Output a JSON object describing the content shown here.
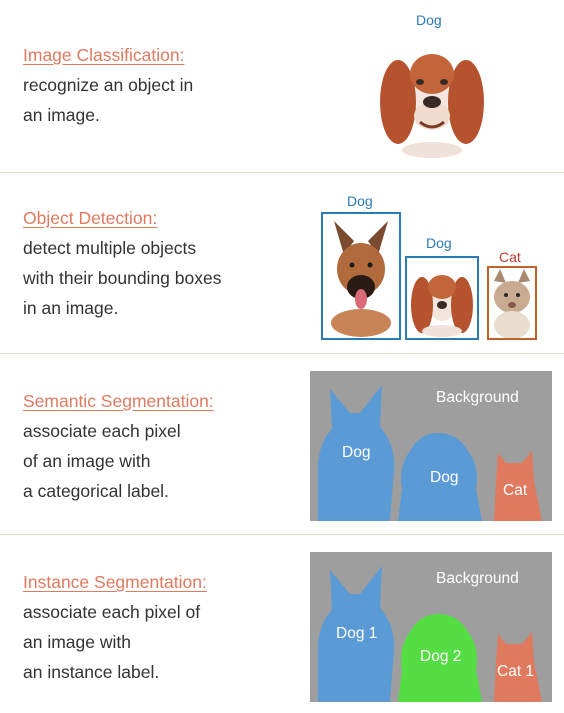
{
  "sections": [
    {
      "heading": "Image Classification:",
      "lines": [
        "recognize an object in",
        "an image."
      ],
      "labels": [
        "Dog"
      ]
    },
    {
      "heading": "Object Detection:",
      "lines": [
        "detect multiple objects",
        "with their bounding boxes",
        "in an image."
      ],
      "labels": [
        "Dog",
        "Dog",
        "Cat"
      ]
    },
    {
      "heading": "Semantic Segmentation:",
      "lines": [
        "associate each pixel",
        "of an image with",
        "a categorical label."
      ],
      "labels": [
        "Background",
        "Dog",
        "Dog",
        "Cat"
      ]
    },
    {
      "heading": "Instance Segmentation:",
      "lines": [
        "associate each pixel of",
        "an image with",
        "an instance label."
      ],
      "labels": [
        "Background",
        "Dog 1",
        "Dog 2",
        "Cat 1"
      ]
    }
  ],
  "colors": {
    "heading": "#e07a5f",
    "dog_mask": "#5b9bd5",
    "cat_mask": "#e07a5f",
    "dog2_mask": "#55dd44",
    "background_mask": "#9e9e9e",
    "box_dog": "#2b7bb9",
    "box_cat": "#c0602b"
  }
}
